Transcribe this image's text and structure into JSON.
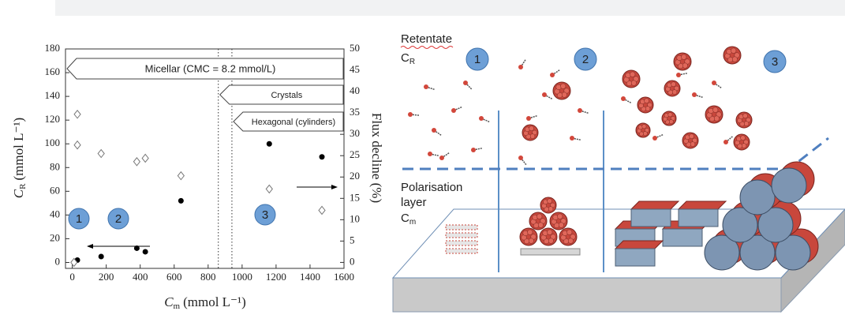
{
  "chart_data": {
    "type": "scatter",
    "y_label_symbol": "C",
    "y_label_sub": "R",
    "y_label_unit": "(mmol L⁻¹)",
    "x_label_symbol": "C",
    "x_label_sub": "m",
    "x_label_unit": "(mmol L⁻¹)",
    "y2_label": "Flux decline (%)",
    "xlim": [
      -40,
      1600
    ],
    "xticks": [
      0,
      200,
      400,
      600,
      800,
      1000,
      1200,
      1400,
      1600
    ],
    "ylim": [
      -5,
      180
    ],
    "yticks": [
      0,
      20,
      40,
      60,
      80,
      100,
      120,
      140,
      160,
      180
    ],
    "y2lim": [
      -1.4,
      50
    ],
    "y2ticks": [
      0,
      5,
      10,
      15,
      20,
      25,
      30,
      35,
      40,
      45,
      50
    ],
    "grid": false,
    "vlines": [
      860,
      940
    ],
    "series": [
      {
        "marker": "filled-circle",
        "color": "#000000",
        "axis": "y",
        "x": [
          30,
          170,
          380,
          430,
          640,
          1160,
          1470
        ],
        "values": [
          2,
          5,
          12,
          9,
          52,
          100,
          89
        ]
      },
      {
        "marker": "open-diamond",
        "color": "#777777",
        "axis": "y2",
        "x": [
          10,
          30,
          30,
          170,
          380,
          430,
          640,
          1160,
          1470
        ],
        "values": [
          0,
          34.7,
          27.5,
          25.5,
          23.6,
          24.4,
          20.3,
          17.2,
          12.2
        ]
      }
    ],
    "regions": [
      "Micellar (CMC = 8.2 mmol/L)",
      "Crystals",
      "Hexagonal (cylinders)"
    ],
    "stage_labels": [
      "1",
      "2",
      "3"
    ]
  },
  "diagram": {
    "retentate": "Retentate",
    "cr_symbol": "C",
    "cr_sub": "R",
    "polarisation": [
      "Polarisation",
      "layer"
    ],
    "cm_symbol": "C",
    "cm_sub": "m",
    "stages": [
      "1",
      "2",
      "3"
    ]
  }
}
